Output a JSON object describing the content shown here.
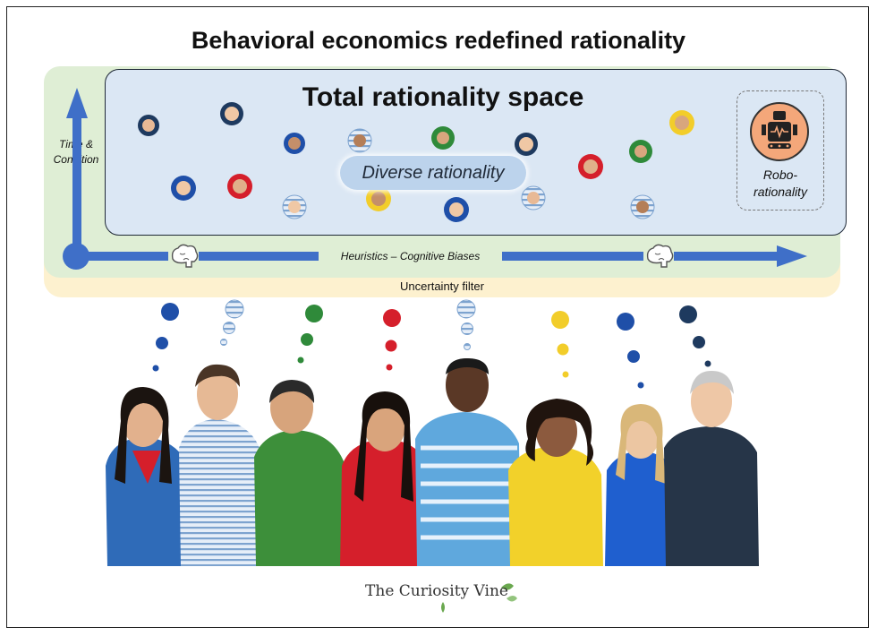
{
  "title": "Behavioral economics redefined rationality",
  "space_title": "Total rationality space",
  "diverse_label": "Diverse rationality",
  "robo_label": "Robo-rationality",
  "time_label": "Time & Condition",
  "heuristics_label": "Heuristics – Cognitive Biases",
  "uncertainty_label": "Uncertainty filter",
  "logo_text": "The Curiosity Vine",
  "colors": {
    "blue": "#1f4fa8",
    "striped": "#c7d8ec",
    "green": "#2f8a3a",
    "red": "#d51f2b",
    "yellow": "#f2cd2a",
    "navy": "#1e3a5f",
    "arrow": "#3f6fc8"
  },
  "people": [
    {
      "name": "woman-blue-shirt",
      "color": "blue"
    },
    {
      "name": "man-striped-shirt",
      "color": "striped"
    },
    {
      "name": "man-green-shirt",
      "color": "green"
    },
    {
      "name": "woman-red-shirt",
      "color": "red"
    },
    {
      "name": "man-light-blue-striped-shirt",
      "color": "striped"
    },
    {
      "name": "woman-yellow-shirt",
      "color": "yellow"
    },
    {
      "name": "woman-blue-top",
      "color": "blue"
    },
    {
      "name": "man-navy-shirt",
      "color": "navy"
    }
  ]
}
